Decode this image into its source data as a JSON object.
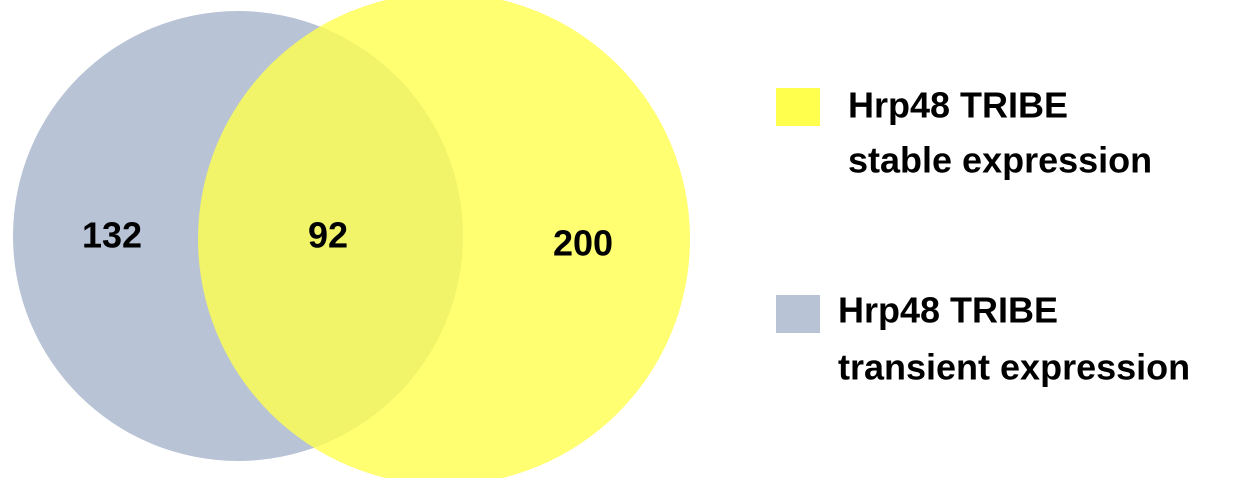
{
  "sets": [
    {
      "label_lines": [
        "Hrp48 TRIBE",
        "transient expression"
      ],
      "color": "#b8c3d5"
    },
    {
      "label_lines": [
        "Hrp48 TRIBE",
        "stable expression"
      ],
      "color": "#ffff4d"
    }
  ],
  "regions": {
    "transient_only": "132",
    "both": "92",
    "stable_only": "200"
  }
}
